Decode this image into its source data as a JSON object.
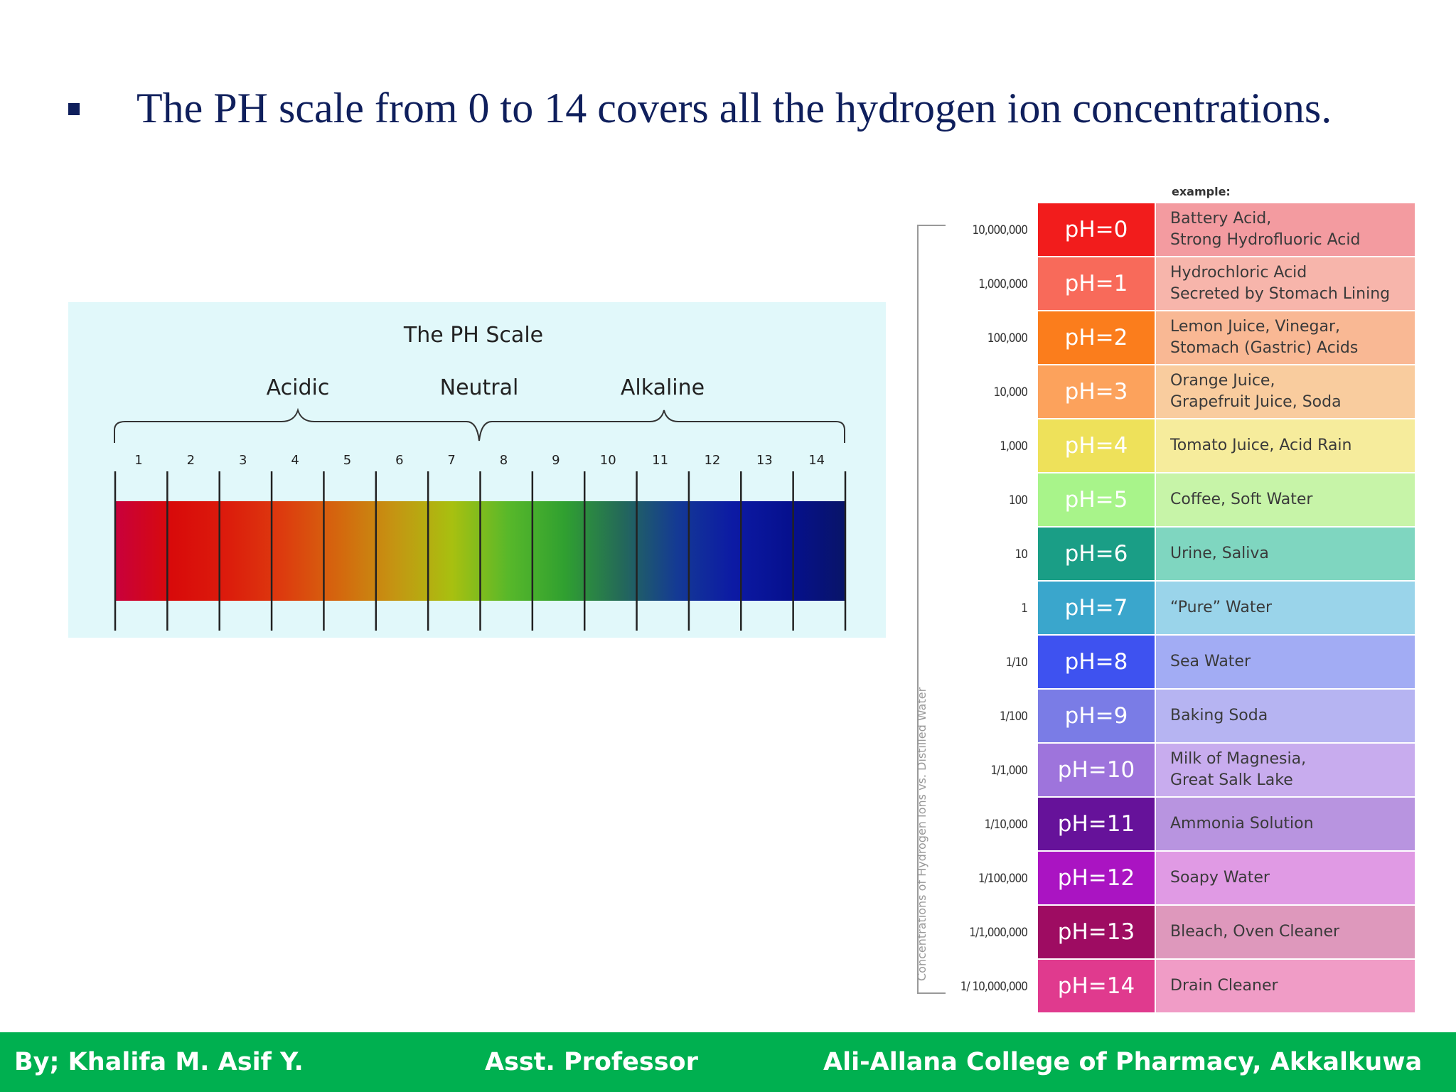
{
  "slide": {
    "bullet_text": "The PH scale from 0 to 14 covers all the hydrogen ion concentrations."
  },
  "scale_figure": {
    "title": "The PH Scale",
    "group_labels": {
      "acidic": "Acidic",
      "neutral": "Neutral",
      "alkaline": "Alkaline"
    },
    "numbers": [
      "1",
      "2",
      "3",
      "4",
      "5",
      "6",
      "7",
      "8",
      "9",
      "10",
      "11",
      "12",
      "13",
      "14"
    ],
    "segment_colors": [
      "#c8003c",
      "#d80a0a",
      "#dc1c0c",
      "#dd3c0e",
      "#d4680e",
      "#c49612",
      "#a8c010",
      "#58b82a",
      "#30a030",
      "#246a58",
      "#143a94",
      "#0c1aa4",
      "#06108e",
      "#081468"
    ]
  },
  "ph_table": {
    "example_label": "example:",
    "axis_title": "Concentrations of Hydrogen Ions vs. Distilled Water",
    "rows": [
      {
        "conc": "10,000,000",
        "ph": "pH=0",
        "example": "Battery Acid,\nStrong Hydrofluoric Acid",
        "ph_color": "#f21c1c",
        "ex_color": "#f39ba0"
      },
      {
        "conc": "1,000,000",
        "ph": "pH=1",
        "example": "Hydrochloric Acid\nSecreted by Stomach Lining",
        "ph_color": "#f86a5a",
        "ex_color": "#f7b5ab"
      },
      {
        "conc": "100,000",
        "ph": "pH=2",
        "example": "Lemon Juice, Vinegar,\nStomach (Gastric) Acids",
        "ph_color": "#fb7d1c",
        "ex_color": "#f9b894"
      },
      {
        "conc": "10,000",
        "ph": "pH=3",
        "example": "Orange Juice,\nGrapefruit Juice, Soda",
        "ph_color": "#fca25c",
        "ex_color": "#f9cc9e"
      },
      {
        "conc": "1,000",
        "ph": "pH=4",
        "example": "Tomato Juice, Acid Rain",
        "ph_color": "#eee15a",
        "ex_color": "#f6ec9c"
      },
      {
        "conc": "100",
        "ph": "pH=5",
        "example": "Coffee, Soft Water",
        "ph_color": "#a8f48a",
        "ex_color": "#c7f4a8"
      },
      {
        "conc": "10",
        "ph": "pH=6",
        "example": "Urine, Saliva",
        "ph_color": "#1a9e86",
        "ex_color": "#7fd6c0"
      },
      {
        "conc": "1",
        "ph": "pH=7",
        "example": "“Pure” Water",
        "ph_color": "#3aa6cc",
        "ex_color": "#9ad4ea"
      },
      {
        "conc": "1/10",
        "ph": "pH=8",
        "example": "Sea Water",
        "ph_color": "#3e52f0",
        "ex_color": "#a2acf4"
      },
      {
        "conc": "1/100",
        "ph": "pH=9",
        "example": "Baking Soda",
        "ph_color": "#7a7ce6",
        "ex_color": "#b6b4f2"
      },
      {
        "conc": "1/1,000",
        "ph": "pH=10",
        "example": "Milk of Magnesia,\nGreat Salk Lake",
        "ph_color": "#9e74dc",
        "ex_color": "#c8acee"
      },
      {
        "conc": "1/10,000",
        "ph": "pH=11",
        "example": "Ammonia Solution",
        "ph_color": "#66129a",
        "ex_color": "#b894e0"
      },
      {
        "conc": "1/100,000",
        "ph": "pH=12",
        "example": "Soapy Water",
        "ph_color": "#aa14c2",
        "ex_color": "#e09ae4"
      },
      {
        "conc": "1/1,000,000",
        "ph": "pH=13",
        "example": "Bleach, Oven Cleaner",
        "ph_color": "#9e0c62",
        "ex_color": "#de98bc"
      },
      {
        "conc": "1/ 10,000,000",
        "ph": "pH=14",
        "example": "Drain Cleaner",
        "ph_color": "#e03a8e",
        "ex_color": "#f09cc6"
      }
    ]
  },
  "footer": {
    "author": "By; Khalifa M. Asif   Y.",
    "designation": "Asst. Professor",
    "college": "Ali-Allana College of Pharmacy, Akkalkuwa",
    "bg_color": "#00b050"
  }
}
